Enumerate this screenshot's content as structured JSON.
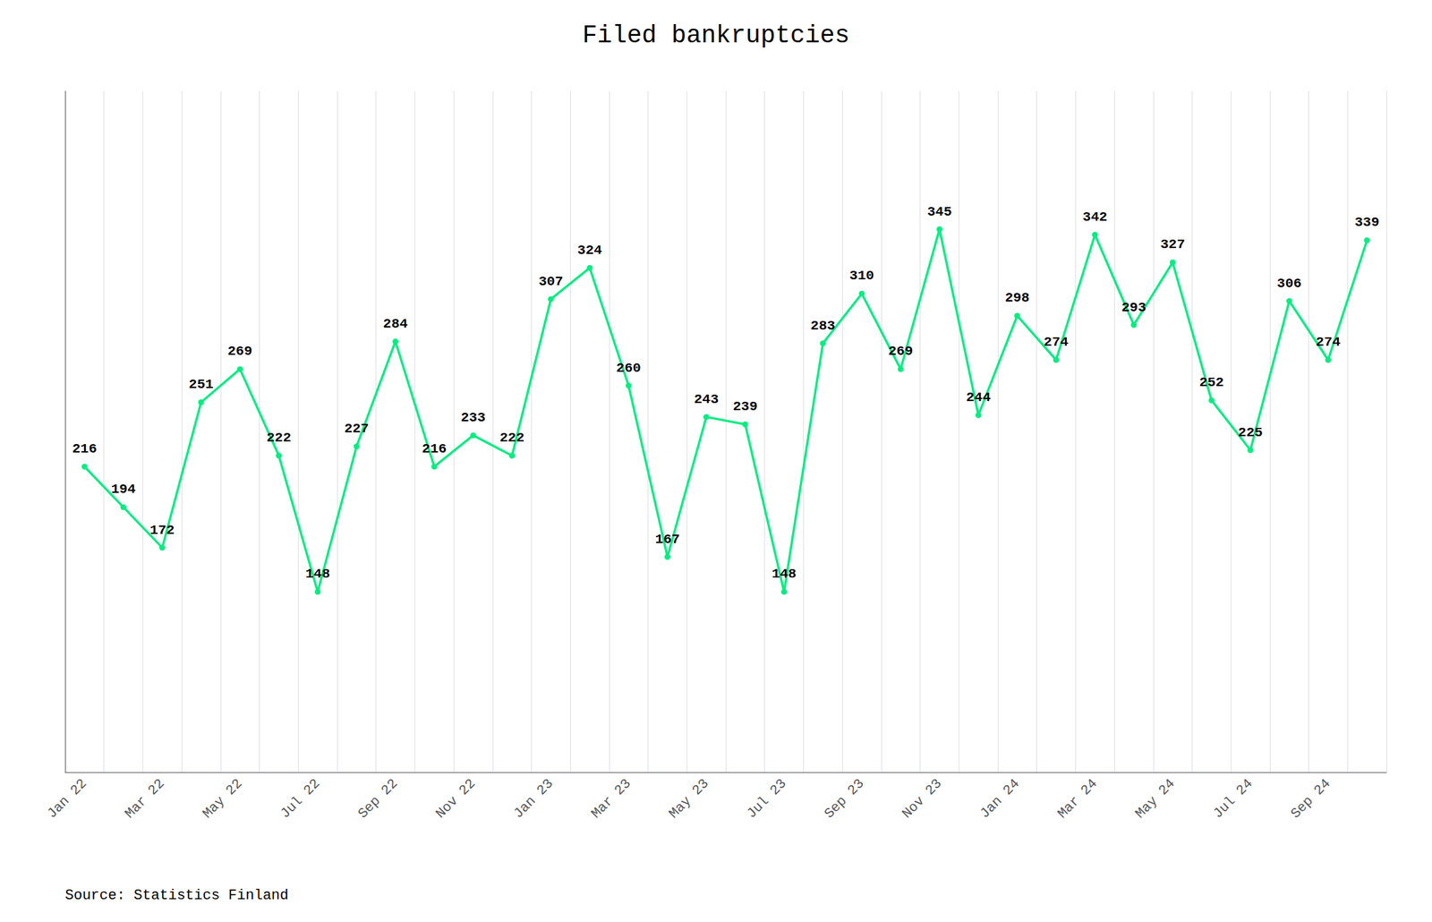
{
  "chart_data": {
    "type": "line",
    "title": "Filed bankruptcies",
    "annotations": [
      "Source: Statistics Finland"
    ],
    "categories": [
      "Jan 22",
      null,
      "Mar 22",
      null,
      "May 22",
      null,
      "Jul 22",
      null,
      "Sep 22",
      null,
      "Nov 22",
      null,
      "Jan 23",
      null,
      "Mar 23",
      null,
      "May 23",
      null,
      "Jul 23",
      null,
      "Sep 23",
      null,
      "Nov 23",
      null,
      "Jan 24",
      null,
      "Mar 24",
      null,
      "May 24",
      null,
      "Jul 24",
      null,
      "Sep 24",
      null
    ],
    "values": [
      216,
      194,
      172,
      251,
      269,
      222,
      148,
      227,
      284,
      216,
      233,
      222,
      307,
      324,
      260,
      167,
      243,
      239,
      148,
      283,
      310,
      269,
      345,
      244,
      298,
      274,
      342,
      293,
      327,
      252,
      225,
      306,
      274,
      339
    ],
    "color": "#00ee80",
    "marker": "circle",
    "ylim": [
      50,
      420
    ],
    "grid": true,
    "data_labels": true,
    "tick_labels": "x"
  }
}
